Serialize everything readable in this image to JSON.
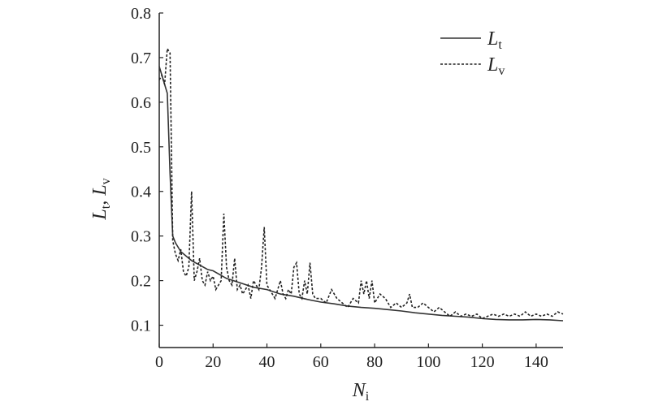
{
  "chart_data": {
    "type": "line",
    "xlim": [
      0,
      150
    ],
    "ylim": [
      0.05,
      0.8
    ],
    "x_ticks": [
      0,
      20,
      40,
      60,
      80,
      100,
      120,
      140
    ],
    "y_ticks": [
      0.1,
      0.2,
      0.3,
      0.4,
      0.5,
      0.6,
      0.7,
      0.8
    ],
    "x_tick_labels": [
      "0",
      "20",
      "40",
      "60",
      "80",
      "100",
      "120",
      "140"
    ],
    "y_tick_labels": [
      "0.1",
      "0.2",
      "0.3",
      "0.4",
      "0.5",
      "0.6",
      "0.7",
      "0.8"
    ],
    "xlabel": {
      "main": "N",
      "sub": "i"
    },
    "ylabel": {
      "main1": "L",
      "sub1": "t",
      "sep": ", ",
      "main2": "L",
      "sub2": "v"
    },
    "grid": false,
    "legend_position": "top-right",
    "series": [
      {
        "name": {
          "main": "L",
          "sub": "t"
        },
        "line_style": "solid",
        "x": [
          0,
          1,
          2,
          3,
          4,
          5,
          6,
          7,
          8,
          10,
          12,
          15,
          18,
          20,
          25,
          30,
          35,
          40,
          45,
          50,
          55,
          60,
          65,
          70,
          75,
          80,
          85,
          90,
          95,
          100,
          105,
          110,
          115,
          120,
          125,
          130,
          135,
          140,
          145,
          150
        ],
        "y": [
          0.68,
          0.66,
          0.64,
          0.62,
          0.44,
          0.3,
          0.285,
          0.275,
          0.265,
          0.255,
          0.245,
          0.235,
          0.225,
          0.222,
          0.205,
          0.195,
          0.185,
          0.18,
          0.17,
          0.165,
          0.158,
          0.152,
          0.148,
          0.143,
          0.14,
          0.138,
          0.135,
          0.132,
          0.128,
          0.125,
          0.122,
          0.12,
          0.118,
          0.115,
          0.113,
          0.112,
          0.112,
          0.113,
          0.112,
          0.11
        ]
      },
      {
        "name": {
          "main": "L",
          "sub": "v"
        },
        "line_style": "dashed",
        "x": [
          0,
          1,
          2,
          3,
          4,
          5,
          6,
          7,
          8,
          9,
          10,
          11,
          12,
          13,
          14,
          15,
          16,
          17,
          18,
          19,
          20,
          21,
          22,
          23,
          24,
          25,
          26,
          27,
          28,
          29,
          30,
          31,
          32,
          33,
          34,
          35,
          36,
          37,
          38,
          39,
          40,
          41,
          42,
          43,
          44,
          45,
          46,
          47,
          48,
          49,
          50,
          51,
          52,
          53,
          54,
          55,
          56,
          57,
          58,
          59,
          60,
          62,
          64,
          66,
          68,
          70,
          72,
          74,
          75,
          76,
          77,
          78,
          79,
          80,
          82,
          84,
          86,
          88,
          90,
          92,
          93,
          94,
          96,
          98,
          100,
          102,
          104,
          106,
          108,
          110,
          112,
          114,
          116,
          118,
          120,
          122,
          124,
          126,
          128,
          130,
          132,
          134,
          136,
          138,
          140,
          142,
          144,
          146,
          148,
          150
        ],
        "y": [
          0.65,
          0.66,
          0.64,
          0.72,
          0.71,
          0.29,
          0.26,
          0.245,
          0.27,
          0.22,
          0.21,
          0.23,
          0.4,
          0.2,
          0.22,
          0.25,
          0.2,
          0.19,
          0.22,
          0.2,
          0.21,
          0.18,
          0.19,
          0.2,
          0.35,
          0.23,
          0.2,
          0.19,
          0.25,
          0.18,
          0.19,
          0.17,
          0.18,
          0.19,
          0.16,
          0.2,
          0.19,
          0.18,
          0.23,
          0.32,
          0.19,
          0.18,
          0.17,
          0.16,
          0.18,
          0.2,
          0.17,
          0.16,
          0.18,
          0.17,
          0.23,
          0.24,
          0.17,
          0.16,
          0.2,
          0.17,
          0.24,
          0.17,
          0.16,
          0.16,
          0.16,
          0.15,
          0.18,
          0.16,
          0.15,
          0.14,
          0.16,
          0.15,
          0.2,
          0.17,
          0.2,
          0.16,
          0.2,
          0.15,
          0.17,
          0.16,
          0.14,
          0.15,
          0.14,
          0.15,
          0.17,
          0.14,
          0.14,
          0.15,
          0.14,
          0.13,
          0.14,
          0.13,
          0.12,
          0.13,
          0.12,
          0.125,
          0.12,
          0.125,
          0.115,
          0.12,
          0.125,
          0.12,
          0.125,
          0.12,
          0.125,
          0.12,
          0.13,
          0.12,
          0.125,
          0.12,
          0.125,
          0.12,
          0.13,
          0.125
        ]
      }
    ]
  }
}
